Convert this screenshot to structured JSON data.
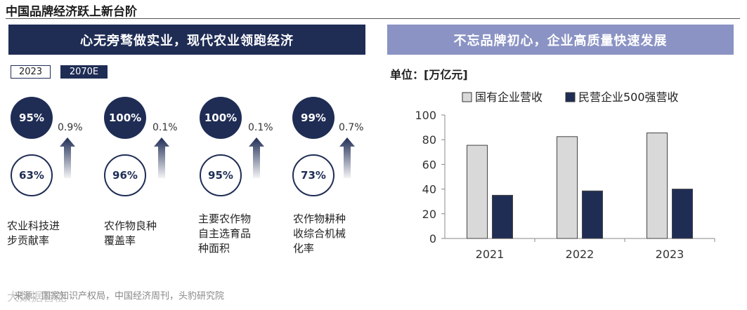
{
  "page_title": "中国品牌经济跃上新台阶",
  "left_banner": "心无旁骛做实业，现代农业领跑经济",
  "right_banner": "不忘品牌初心，企业高质量快速发展",
  "legend": {
    "y2023": "2023",
    "y2070": "2070E"
  },
  "metrics": [
    {
      "value_2070": "95%",
      "value_2023": "63%",
      "increase": "0.9%",
      "label_lines": [
        "农业科技进",
        "步贡献率"
      ]
    },
    {
      "value_2070": "100%",
      "value_2023": "96%",
      "increase": "0.1%",
      "label_lines": [
        "农作物良种",
        "覆盖率"
      ]
    },
    {
      "value_2070": "100%",
      "value_2023": "95%",
      "increase": "0.1%",
      "label_lines": [
        "主要农作物",
        "自主选育品",
        "种面积"
      ]
    },
    {
      "value_2070": "99%",
      "value_2023": "73%",
      "increase": "0.7%",
      "label_lines": [
        "农作物耕种",
        "收综合机械",
        "化率"
      ]
    }
  ],
  "unit": "单位：[万亿元]",
  "source": "来源：国家知识产权局，中国经济周刊，头豹研究院",
  "watermark": "大数据智能",
  "colors": {
    "navy": "#1f2d55",
    "light_bar": "#d9d9d9",
    "banner_right": "#8b93c4"
  },
  "chart_data": {
    "type": "bar",
    "categories": [
      "2021",
      "2022",
      "2023"
    ],
    "series": [
      {
        "name": "国有企业营收",
        "values": [
          75.5,
          82.5,
          85.5
        ],
        "color": "#d9d9d9"
      },
      {
        "name": "民营企业500强营收",
        "values": [
          35,
          38.5,
          40
        ],
        "color": "#1f2d55"
      }
    ],
    "ylim": [
      0,
      100
    ],
    "yticks": [
      "0",
      "20",
      "40",
      "60",
      "80",
      "100"
    ]
  }
}
